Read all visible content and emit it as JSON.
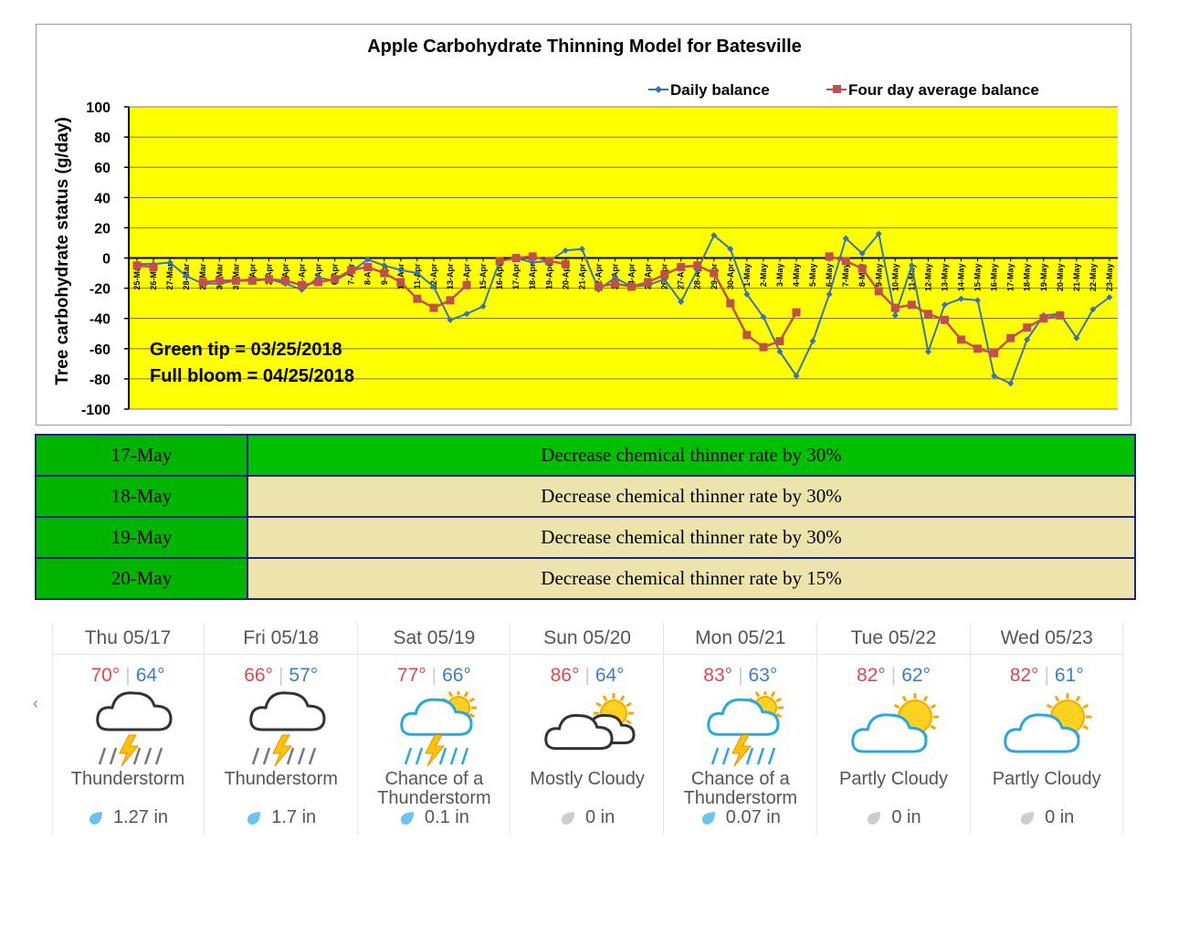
{
  "chart_data": {
    "type": "line",
    "title": "Apple Carbohydrate Thinning Model for Batesville",
    "ylabel": "Tree carbohydrate status (g/day)",
    "ylim": [
      -100,
      100
    ],
    "yticks": [
      100,
      80,
      60,
      40,
      20,
      0,
      -20,
      -40,
      -60,
      -80,
      -100
    ],
    "legend_position": "top-right",
    "categories": [
      "25-Mar",
      "26-Mar",
      "27-Mar",
      "28-Mar",
      "29-Mar",
      "30-Mar",
      "31-Mar",
      "1-Apr",
      "2-Apr",
      "3-Apr",
      "4-Apr",
      "5-Apr",
      "6-Apr",
      "7-Apr",
      "8-Apr",
      "9-Apr",
      "10-Apr",
      "11-Apr",
      "12-Apr",
      "13-Apr",
      "14-Apr",
      "15-Apr",
      "16-Apr",
      "17-Apr",
      "18-Apr",
      "19-Apr",
      "20-Apr",
      "21-Apr",
      "22-Apr",
      "23-Apr",
      "24-Apr",
      "25-Apr",
      "26-Apr",
      "27-Apr",
      "28-Apr",
      "29-Apr",
      "30-Apr",
      "1-May",
      "2-May",
      "3-May",
      "4-May",
      "5-May",
      "6-May",
      "7-May",
      "8-May",
      "9-May",
      "10-May",
      "11-May",
      "12-May",
      "13-May",
      "14-May",
      "15-May",
      "16-May",
      "17-May",
      "18-May",
      "19-May",
      "20-May",
      "21-May",
      "22-May",
      "23-May"
    ],
    "series": [
      {
        "name": "Daily balance",
        "color": "#3a72b5",
        "marker": "diamond",
        "values": [
          -4,
          -4,
          -3,
          -12,
          -17,
          -17,
          -15,
          -14,
          -14,
          -17,
          -21,
          -13,
          -15,
          -9,
          -1,
          -5,
          -8,
          -10,
          -19,
          -41,
          -37,
          -32,
          -2,
          0,
          -3,
          -2,
          5,
          6,
          -21,
          -13,
          -19,
          -18,
          -14,
          -29,
          -8,
          15,
          6,
          -24,
          -39,
          -62,
          -78,
          -55,
          -24,
          13,
          3,
          16,
          -38,
          -5,
          -62,
          -31,
          -27,
          -28,
          -78,
          -83,
          -54,
          -38,
          -37,
          -53,
          -34,
          -26
        ]
      },
      {
        "name": "Four day average balance",
        "color": "#c0504d",
        "marker": "square",
        "values": [
          -5,
          -6,
          null,
          null,
          -16,
          -15,
          -15,
          -15,
          -14,
          -15,
          -18,
          -16,
          -14,
          -8,
          -6,
          -10,
          -16,
          -27,
          -33,
          -28,
          -18,
          null,
          -2,
          0,
          1,
          -2,
          -4,
          null,
          -19,
          -17,
          -19,
          -16,
          -11,
          -6,
          -5,
          -10,
          -30,
          -51,
          -59,
          -55,
          -36,
          null,
          1,
          -2,
          -7,
          -22,
          -33,
          -31,
          -37,
          -41,
          -54,
          -60,
          -63,
          -53,
          -46,
          -40,
          -38,
          null,
          null,
          null
        ]
      }
    ],
    "annotations": [
      "Green tip = 03/25/2018",
      "Full bloom = 04/25/2018"
    ],
    "background_color": "#ffff00"
  },
  "advice": [
    {
      "date": "17-May",
      "text": "Decrease chemical thinner rate by 30%",
      "highlight": true
    },
    {
      "date": "18-May",
      "text": "Decrease chemical thinner rate by 30%",
      "highlight": false
    },
    {
      "date": "19-May",
      "text": "Decrease chemical thinner rate by 30%",
      "highlight": false
    },
    {
      "date": "20-May",
      "text": "Decrease chemical thinner rate by 15%",
      "highlight": false
    }
  ],
  "forecast": [
    {
      "day": "Thu 05/17",
      "hi": "70°",
      "lo": "64°",
      "icon": "thunderstorm-icon",
      "cond": "Thunderstorm",
      "precip": "1.27 in",
      "wet": true
    },
    {
      "day": "Fri 05/18",
      "hi": "66°",
      "lo": "57°",
      "icon": "thunderstorm-icon",
      "cond": "Thunderstorm",
      "precip": "1.7 in",
      "wet": true
    },
    {
      "day": "Sat 05/19",
      "hi": "77°",
      "lo": "66°",
      "icon": "chance-thunderstorm-icon",
      "cond": "Chance of a Thunderstorm",
      "precip": "0.1 in",
      "wet": true
    },
    {
      "day": "Sun 05/20",
      "hi": "86°",
      "lo": "64°",
      "icon": "mostly-cloudy-icon",
      "cond": "Mostly Cloudy",
      "precip": "0 in",
      "wet": false
    },
    {
      "day": "Mon 05/21",
      "hi": "83°",
      "lo": "63°",
      "icon": "chance-thunderstorm-icon",
      "cond": "Chance of a Thunderstorm",
      "precip": "0.07 in",
      "wet": true
    },
    {
      "day": "Tue 05/22",
      "hi": "82°",
      "lo": "62°",
      "icon": "partly-cloudy-icon",
      "cond": "Partly Cloudy",
      "precip": "0 in",
      "wet": false
    },
    {
      "day": "Wed 05/23",
      "hi": "82°",
      "lo": "61°",
      "icon": "partly-cloudy-icon",
      "cond": "Partly Cloudy",
      "precip": "0 in",
      "wet": false
    }
  ],
  "nav": {
    "left_arrow": "‹"
  }
}
